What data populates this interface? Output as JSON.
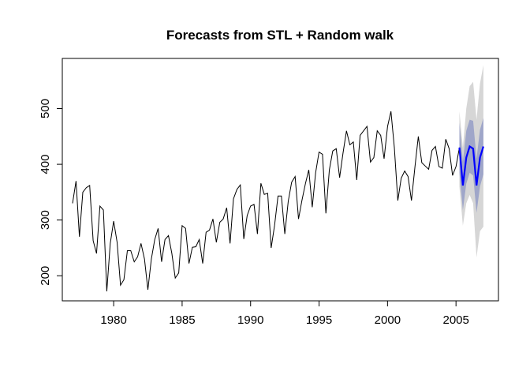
{
  "chart_data": {
    "type": "line",
    "title": "Forecasts from STL +  Random walk",
    "xlabel": "",
    "ylabel": "",
    "xlim": [
      1976.25,
      2008.1
    ],
    "ylim": [
      155,
      590
    ],
    "x_ticks": [
      1980,
      1985,
      1990,
      1995,
      2000,
      2005
    ],
    "y_ticks": [
      200,
      300,
      400,
      500
    ],
    "grid": false,
    "legend": "none",
    "colors": {
      "history": "#000000",
      "forecast": "#0000ff",
      "band80": "#9fa6c9",
      "band95": "#d6d6d6"
    },
    "history": {
      "start": 1977.0,
      "frequency": 4,
      "values": [
        330,
        370,
        270,
        350,
        358,
        362,
        263,
        240,
        325,
        318,
        172,
        258,
        298,
        260,
        183,
        193,
        245,
        245,
        225,
        234,
        258,
        230,
        175,
        230,
        265,
        285,
        225,
        265,
        272,
        240,
        196,
        205,
        290,
        285,
        222,
        251,
        252,
        265,
        222,
        278,
        282,
        302,
        260,
        296,
        302,
        322,
        258,
        338,
        355,
        363,
        266,
        308,
        325,
        328,
        275,
        366,
        346,
        348,
        250,
        290,
        343,
        343,
        275,
        334,
        368,
        378,
        302,
        335,
        365,
        390,
        323,
        385,
        422,
        418,
        312,
        390,
        424,
        428,
        376,
        420,
        460,
        435,
        440,
        372,
        452,
        460,
        468,
        404,
        412,
        460,
        452,
        410,
        468,
        495,
        430,
        335,
        375,
        388,
        378,
        335,
        395,
        450,
        403,
        397,
        391,
        425,
        432,
        396,
        393,
        445,
        428,
        380,
        396,
        430
      ]
    },
    "forecast": {
      "start": 2005.25,
      "frequency": 4,
      "values": [
        430,
        362,
        412,
        432,
        428,
        362,
        412,
        432
      ],
      "lo80": [
        385,
        318,
        365,
        385,
        380,
        313,
        360,
        382
      ],
      "hi80": [
        475,
        405,
        460,
        480,
        478,
        410,
        462,
        483
      ],
      "lo95": [
        360,
        290,
        330,
        345,
        330,
        233,
        280,
        288
      ],
      "hi95": [
        495,
        430,
        500,
        540,
        548,
        480,
        545,
        578
      ]
    }
  }
}
